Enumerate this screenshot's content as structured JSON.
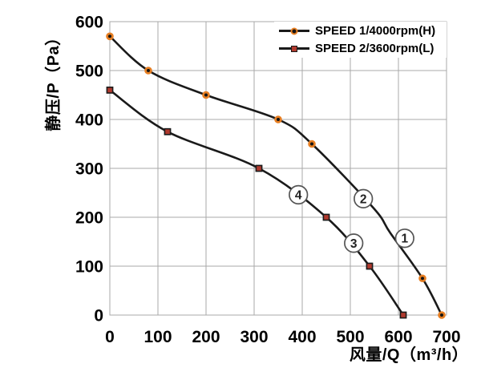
{
  "figure": {
    "background": "#ffffff",
    "type_note": "fan static pressure vs air flow performance curves"
  },
  "colors": {
    "curve_line": "#1a1a1a",
    "grid": "#a9a9a9",
    "tick_text": "#000000",
    "annotation_ring": "#555555",
    "annotation_text": "#222222",
    "speed1_marker_core": "#141414",
    "speed1_marker_ring": "#E67E22",
    "speed2_marker_fill": "#B03A2E",
    "speed2_marker_edge": "#1a1a1a"
  },
  "chart_data": {
    "type": "line",
    "title": "",
    "xlabel": "风量/Q（m³/h）",
    "ylabel": "静压/P（Pa）",
    "xlim": [
      0,
      700
    ],
    "ylim": [
      0,
      600
    ],
    "xticks": [
      0,
      100,
      200,
      300,
      400,
      500,
      600,
      700
    ],
    "yticks": [
      0,
      100,
      200,
      300,
      400,
      500,
      600
    ],
    "grid": true,
    "legend_position": "top-right-inside",
    "series": [
      {
        "name": "SPEED 1/4000rpm(H)",
        "marker": "circle",
        "points": [
          [
            0,
            570
          ],
          [
            80,
            500
          ],
          [
            200,
            450
          ],
          [
            350,
            400
          ],
          [
            420,
            350
          ],
          [
            650,
            75
          ],
          [
            690,
            0
          ]
        ],
        "shape_points": [
          [
            548,
            219
          ],
          [
            583,
            168
          ]
        ]
      },
      {
        "name": "SPEED 2/3600rpm(L)",
        "marker": "square",
        "points": [
          [
            0,
            460
          ],
          [
            120,
            375
          ],
          [
            310,
            300
          ],
          [
            450,
            200
          ],
          [
            540,
            100
          ],
          [
            610,
            0
          ]
        ],
        "shape_points": []
      }
    ],
    "annotations": [
      {
        "label": "4",
        "x": 392,
        "y": 246
      },
      {
        "label": "2",
        "x": 527,
        "y": 238
      },
      {
        "label": "3",
        "x": 507,
        "y": 147
      },
      {
        "label": "1",
        "x": 613,
        "y": 157
      }
    ]
  }
}
